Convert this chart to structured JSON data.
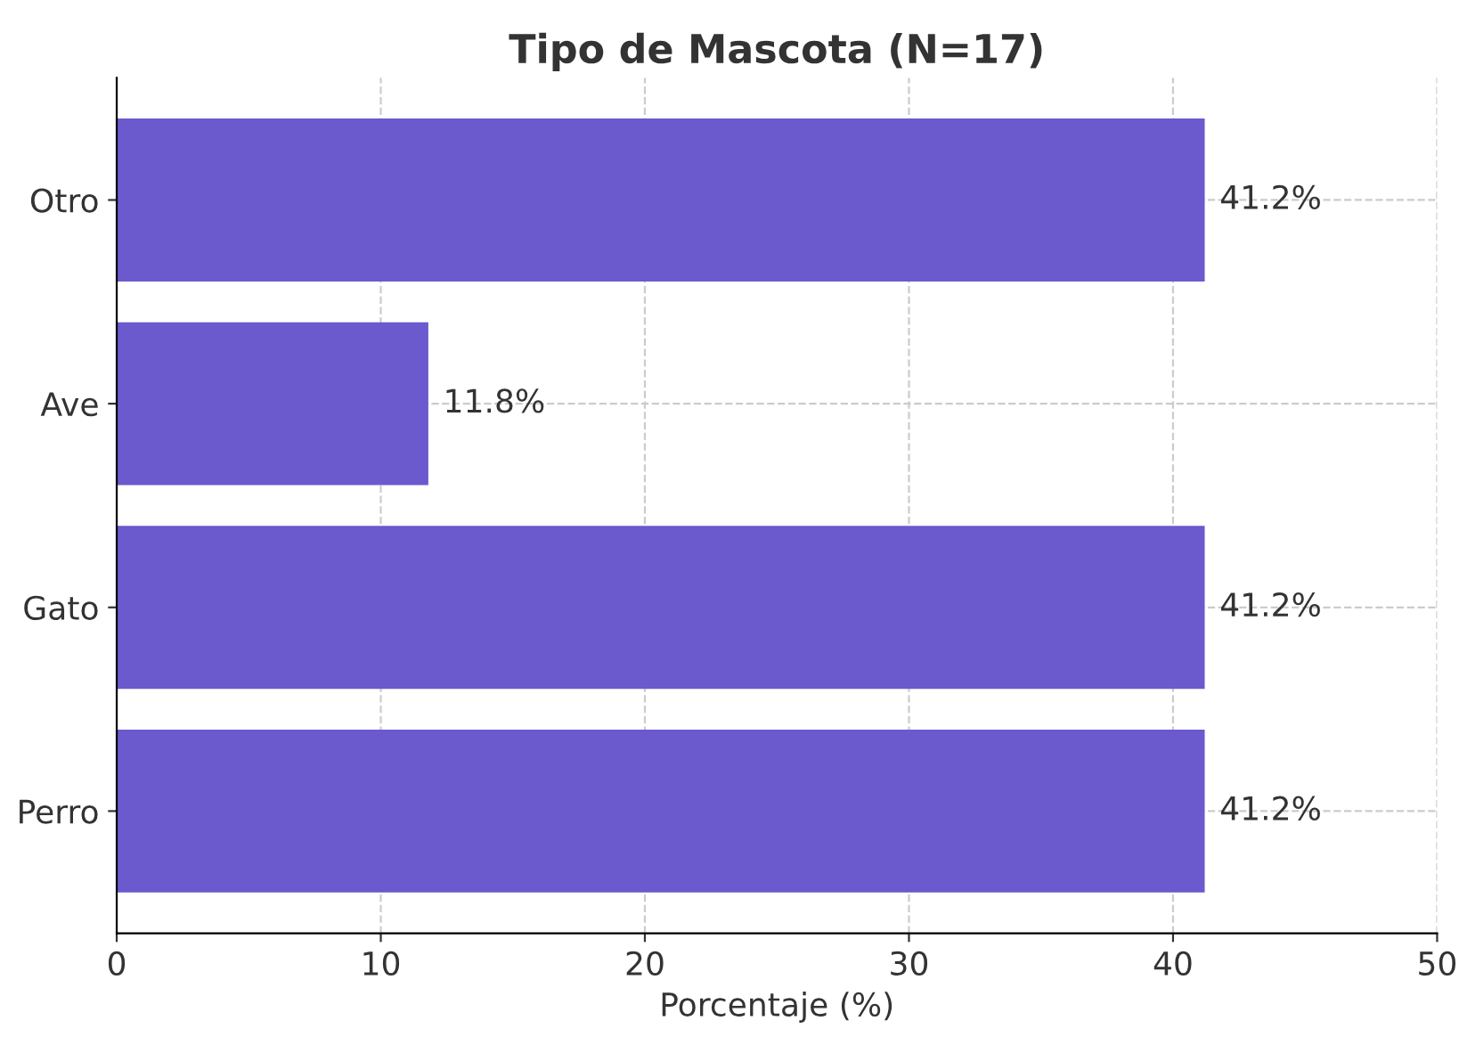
{
  "chart_data": {
    "type": "bar",
    "orientation": "horizontal",
    "title": "Tipo de Mascota (N=17)",
    "xlabel": "Porcentaje (%)",
    "categories": [
      "Otro",
      "Ave",
      "Gato",
      "Perro"
    ],
    "values": [
      41.2,
      11.8,
      41.2,
      41.2
    ],
    "value_labels": [
      "41.2%",
      "11.8%",
      "41.2%",
      "41.2%"
    ],
    "color": "#6a5acd",
    "xlim": [
      0,
      50
    ],
    "xticks": [
      0,
      10,
      20,
      30,
      40,
      50
    ],
    "grid": true
  }
}
